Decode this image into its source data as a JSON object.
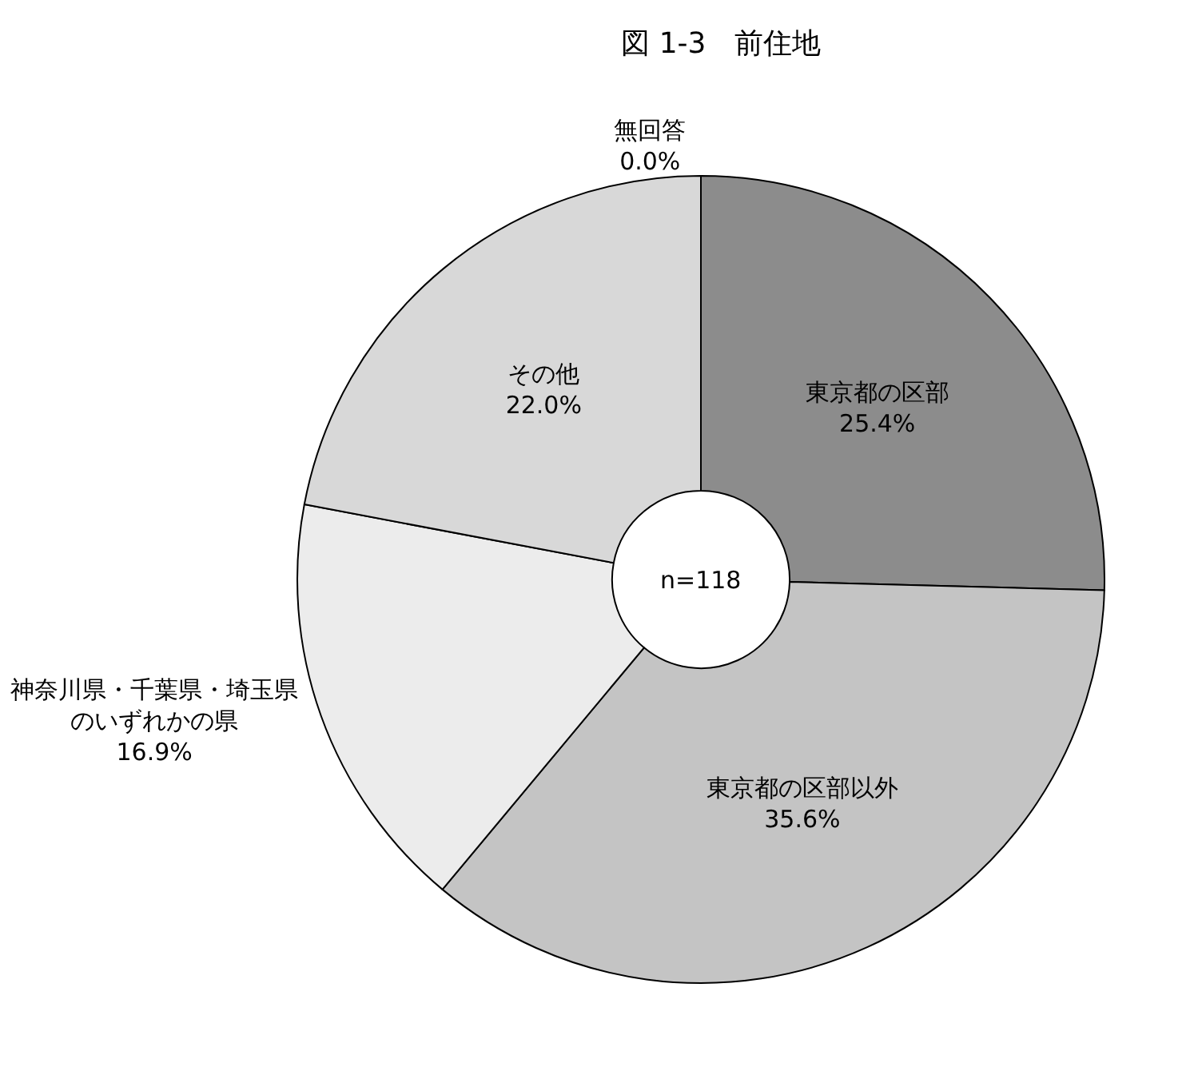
{
  "chart_data": {
    "type": "donut",
    "title": "図 1-3　前住地",
    "categories": [
      "東京都の区部",
      "東京都の区部以外",
      "神奈川県・千葉県・埼玉県のいずれかの県",
      "その他",
      "無回答"
    ],
    "values": [
      25.4,
      35.6,
      16.9,
      22.0,
      0.0
    ],
    "value_labels": [
      "25.4%",
      "35.6%",
      "16.9%",
      "22.0%",
      "0.0%"
    ],
    "colors": [
      "#8c8c8c",
      "#c4c4c4",
      "#ececec",
      "#d8d8d8",
      "#ffffff"
    ],
    "annotations": [
      "n=118"
    ],
    "legend": false
  }
}
